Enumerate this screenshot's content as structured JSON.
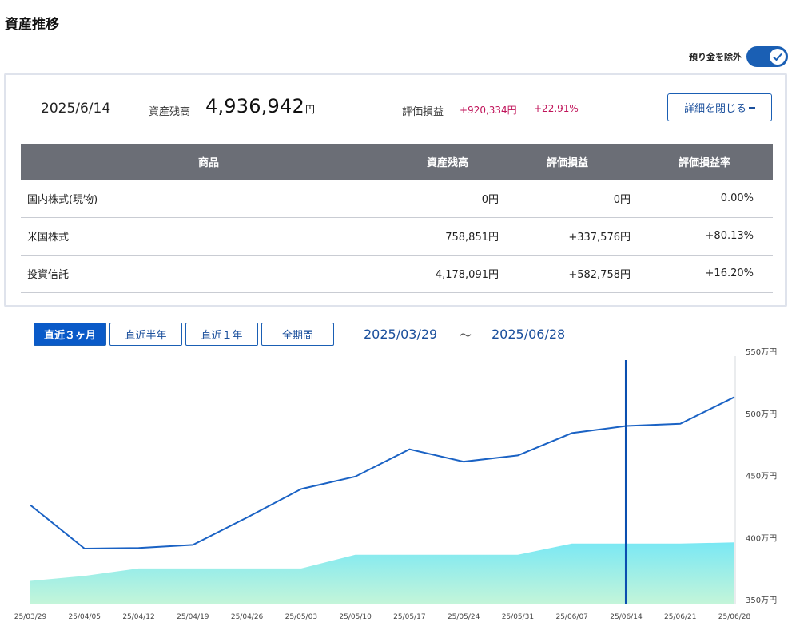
{
  "page": {
    "title": "資産推移"
  },
  "toggle": {
    "label": "預り金を除外",
    "state": "on",
    "accent": "#1a5fb4"
  },
  "summary": {
    "date": "2025/6/14",
    "balance_label": "資産残高",
    "balance_value": "4,936,942",
    "balance_unit": "円",
    "pl_label": "評価損益",
    "pl_value": "+920,334円",
    "pl_rate": "+22.91%",
    "detail_button": "詳細を閉じる",
    "detail_icon": "minus-icon"
  },
  "holdings": {
    "headers": [
      "商品",
      "資産残高",
      "評価損益",
      "評価損益率"
    ],
    "rows": [
      {
        "name": "国内株式(現物)",
        "balance": "0円",
        "pl": "0円",
        "rate": "0.00%",
        "positive": false
      },
      {
        "name": "米国株式",
        "balance": "758,851円",
        "pl": "+337,576円",
        "rate": "+80.13%",
        "positive": true
      },
      {
        "name": "投資信託",
        "balance": "4,178,091円",
        "pl": "+582,758円",
        "rate": "+16.20%",
        "positive": true
      }
    ]
  },
  "period": {
    "buttons": [
      {
        "label": "直近３ヶ月",
        "active": true
      },
      {
        "label": "直近半年",
        "active": false
      },
      {
        "label": "直近１年",
        "active": false
      },
      {
        "label": "全期間",
        "active": false
      }
    ],
    "start": "2025/03/29",
    "separator": "～",
    "end": "2025/06/28"
  },
  "chart_data": {
    "type": "line",
    "title": "",
    "xlabel": "",
    "ylabel": "",
    "ylim": [
      350,
      550
    ],
    "y_unit": "万円",
    "y_ticks": [
      {
        "value": 550,
        "label": "550万円"
      },
      {
        "value": 500,
        "label": "500万円"
      },
      {
        "value": 450,
        "label": "450万円"
      },
      {
        "value": 400,
        "label": "400万円"
      },
      {
        "value": 350,
        "label": "350万円"
      }
    ],
    "x": [
      "25/03/29",
      "25/04/05",
      "25/04/12",
      "25/04/19",
      "25/04/26",
      "25/05/03",
      "25/05/10",
      "25/05/17",
      "25/05/24",
      "25/05/31",
      "25/06/07",
      "25/06/14",
      "25/06/21",
      "25/06/28"
    ],
    "series": [
      {
        "name": "",
        "kind": "line",
        "color": "#1a62c4",
        "values": [
          430,
          395,
          395.5,
          398,
          420,
          443,
          453,
          475,
          465,
          470,
          488,
          493.7,
          495.5,
          517
        ]
      },
      {
        "name": "",
        "kind": "area",
        "color": "#7fe8f2",
        "values": [
          369,
          373,
          379,
          379,
          379,
          379,
          390,
          390,
          390,
          390,
          399,
          399,
          399,
          400
        ]
      }
    ],
    "cursor": {
      "x": "25/06/14",
      "color": "#0a4fb0"
    },
    "grid": false
  }
}
